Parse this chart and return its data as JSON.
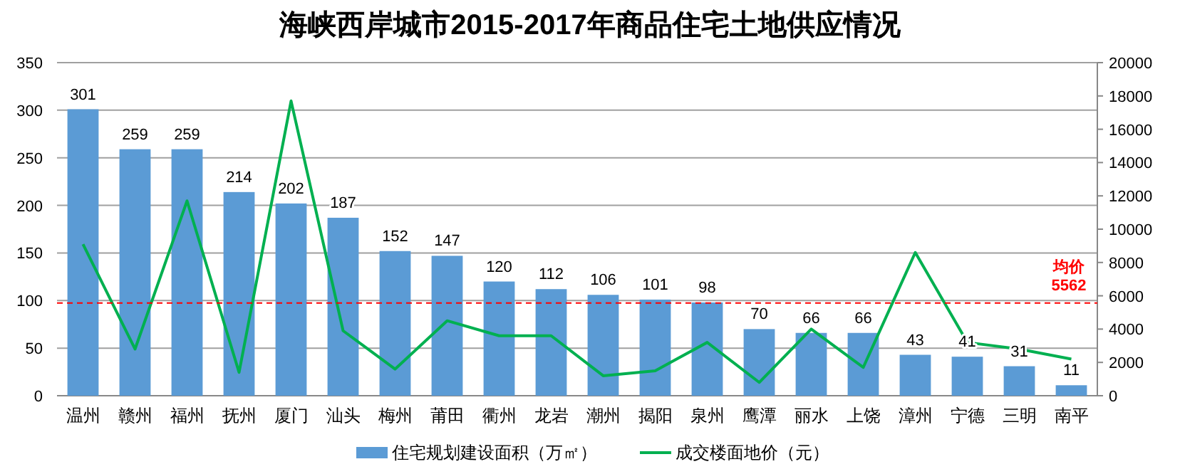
{
  "chart_data": {
    "type": "bar",
    "title": "海峡西岸城市2015-2017年商品住宅土地供应情况",
    "categories": [
      "温州",
      "赣州",
      "福州",
      "抚州",
      "厦门",
      "汕头",
      "梅州",
      "莆田",
      "衢州",
      "龙岩",
      "潮州",
      "揭阳",
      "泉州",
      "鹰潭",
      "丽水",
      "上饶",
      "漳州",
      "宁德",
      "三明",
      "南平"
    ],
    "series": [
      {
        "name": "住宅规划建设面积（万㎡）",
        "color": "#5b9bd5",
        "values": [
          301,
          259,
          259,
          214,
          202,
          187,
          152,
          147,
          120,
          112,
          106,
          101,
          98,
          70,
          66,
          66,
          43,
          41,
          31,
          11
        ],
        "value_labels": [
          "301",
          "259",
          "259",
          "214",
          "202",
          "187",
          "152",
          "147",
          "120",
          "112",
          "106",
          "101",
          "98",
          "70",
          "66",
          "66",
          "43",
          "41",
          "31",
          "11"
        ]
      },
      {
        "name": "成交楼面地价（元）",
        "type": "line",
        "axis": "y2",
        "color": "#00b050",
        "values": [
          9100,
          2800,
          11700,
          1400,
          17700,
          3900,
          1600,
          4500,
          3600,
          3600,
          1200,
          1500,
          3200,
          800,
          4000,
          1700,
          8600,
          3200,
          2800,
          2200
        ]
      }
    ],
    "ylim": [
      0,
      350
    ],
    "yticks": [
      0,
      50,
      100,
      150,
      200,
      250,
      300,
      350
    ],
    "y2lim": [
      0,
      20000
    ],
    "y2ticks": [
      0,
      2000,
      4000,
      6000,
      8000,
      10000,
      12000,
      14000,
      16000,
      18000,
      20000
    ],
    "ref_lines": [
      {
        "axis": "y2",
        "value": 5562,
        "label": "均价\n5562",
        "color": "#ff0000",
        "line_style": "dashed"
      }
    ],
    "grid": "y",
    "legend": "bottom",
    "marker": "none"
  }
}
